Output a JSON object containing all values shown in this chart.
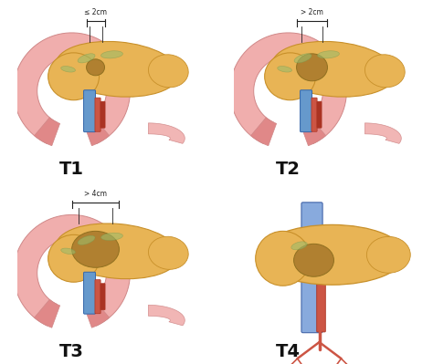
{
  "background_color": "#ffffff",
  "panel_texts": [
    "T1",
    "T2",
    "T3",
    "T4"
  ],
  "panel_annotations": [
    "≤ 2cm",
    "> 2cm",
    "> 4cm",
    ""
  ],
  "label_fontsize": 14,
  "label_color": "#111111",
  "divider_color": "#bbbbbb",
  "figsize": [
    4.74,
    3.99
  ],
  "dpi": 100,
  "pancreas_color": "#E8B455",
  "pancreas_edge": "#C8902A",
  "duodenum_color": "#F0AEAD",
  "duodenum_edge": "#D08888",
  "tumor_color": "#B08030",
  "tumor_edge": "#907020",
  "vein_color": "#6699CC",
  "vein_edge": "#3366AA",
  "artery_color": "#CC5544",
  "artery_edge": "#AA3322",
  "tail_color": "#F0C070",
  "tail_edge": "#C89040"
}
